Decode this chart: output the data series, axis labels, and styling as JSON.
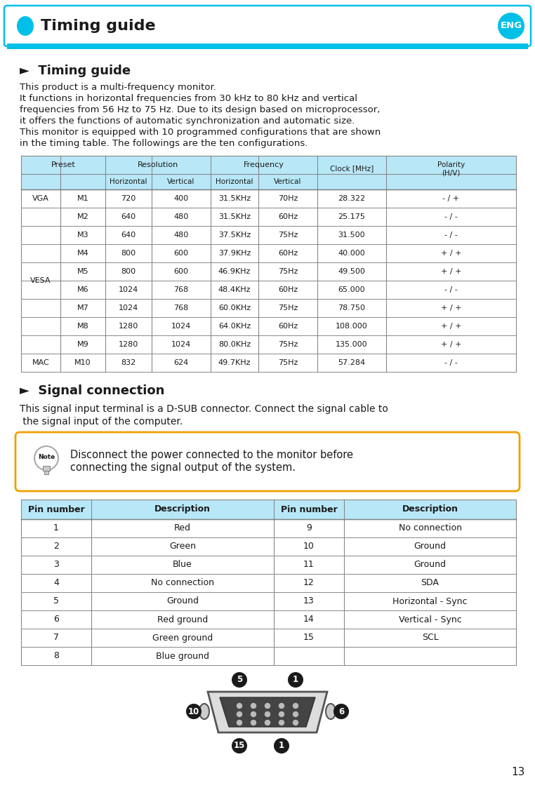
{
  "page_bg": "#ffffff",
  "header_bar_color": "#00c0e8",
  "header_title": "Timing guide",
  "header_eng_text": "ENG",
  "section1_title": "►  Timing guide",
  "intro_lines": [
    "This product is a multi-frequency monitor.",
    "It functions in horizontal frequencies from 30 kHz to 80 kHz and vertical",
    "frequencies from 56 Hz to 75 Hz. Due to its design based on microprocessor,",
    "it offers the functions of automatic synchronization and automatic size.",
    "This monitor is equipped with 10 programmed configurations that are shown",
    "in the timing table. The followings are the ten configurations."
  ],
  "table1_header_bg": "#b8e8f8",
  "table1_data": [
    [
      "VGA",
      "M1",
      "720",
      "400",
      "31.5KHz",
      "70Hz",
      "28.322",
      "- / +"
    ],
    [
      "VESA",
      "M2",
      "640",
      "480",
      "31.5KHz",
      "60Hz",
      "25.175",
      "- / -"
    ],
    [
      "VESA",
      "M3",
      "640",
      "480",
      "37.5KHz",
      "75Hz",
      "31.500",
      "- / -"
    ],
    [
      "VESA",
      "M4",
      "800",
      "600",
      "37.9KHz",
      "60Hz",
      "40.000",
      "+ / +"
    ],
    [
      "VESA",
      "M5",
      "800",
      "600",
      "46.9KHz",
      "75Hz",
      "49.500",
      "+ / +"
    ],
    [
      "VESA",
      "M6",
      "1024",
      "768",
      "48.4KHz",
      "60Hz",
      "65.000",
      "- / -"
    ],
    [
      "VESA",
      "M7",
      "1024",
      "768",
      "60.0KHz",
      "75Hz",
      "78.750",
      "+ / +"
    ],
    [
      "VESA",
      "M8",
      "1280",
      "1024",
      "64.0KHz",
      "60Hz",
      "108.000",
      "+ / +"
    ],
    [
      "VESA",
      "M9",
      "1280",
      "1024",
      "80.0KHz",
      "75Hz",
      "135.000",
      "+ / +"
    ],
    [
      "MAC",
      "M10",
      "832",
      "624",
      "49.7KHz",
      "75Hz",
      "57.284",
      "- / -"
    ]
  ],
  "section2_title": "►  Signal connection",
  "signal_text_lines": [
    "This signal input terminal is a D-SUB connector. Connect the signal cable to",
    " the signal input of the computer."
  ],
  "note_text_lines": [
    "Disconnect the power connected to the monitor before",
    "connecting the signal output of the system."
  ],
  "note_border": "#f0a000",
  "table2_header_bg": "#b8e8f8",
  "table2_left": [
    [
      "1",
      "Red"
    ],
    [
      "2",
      "Green"
    ],
    [
      "3",
      "Blue"
    ],
    [
      "4",
      "No connection"
    ],
    [
      "5",
      "Ground"
    ],
    [
      "6",
      "Red ground"
    ],
    [
      "7",
      "Green ground"
    ],
    [
      "8",
      "Blue ground"
    ]
  ],
  "table2_right": [
    [
      "9",
      "No connection"
    ],
    [
      "10",
      "Ground"
    ],
    [
      "11",
      "Ground"
    ],
    [
      "12",
      "SDA"
    ],
    [
      "13",
      "Horizontal - Sync"
    ],
    [
      "14",
      "Vertical - Sync"
    ],
    [
      "15",
      "SCL"
    ],
    [
      "",
      ""
    ]
  ],
  "page_number": "13",
  "border_color": "#888888",
  "text_color": "#1a1a1a"
}
